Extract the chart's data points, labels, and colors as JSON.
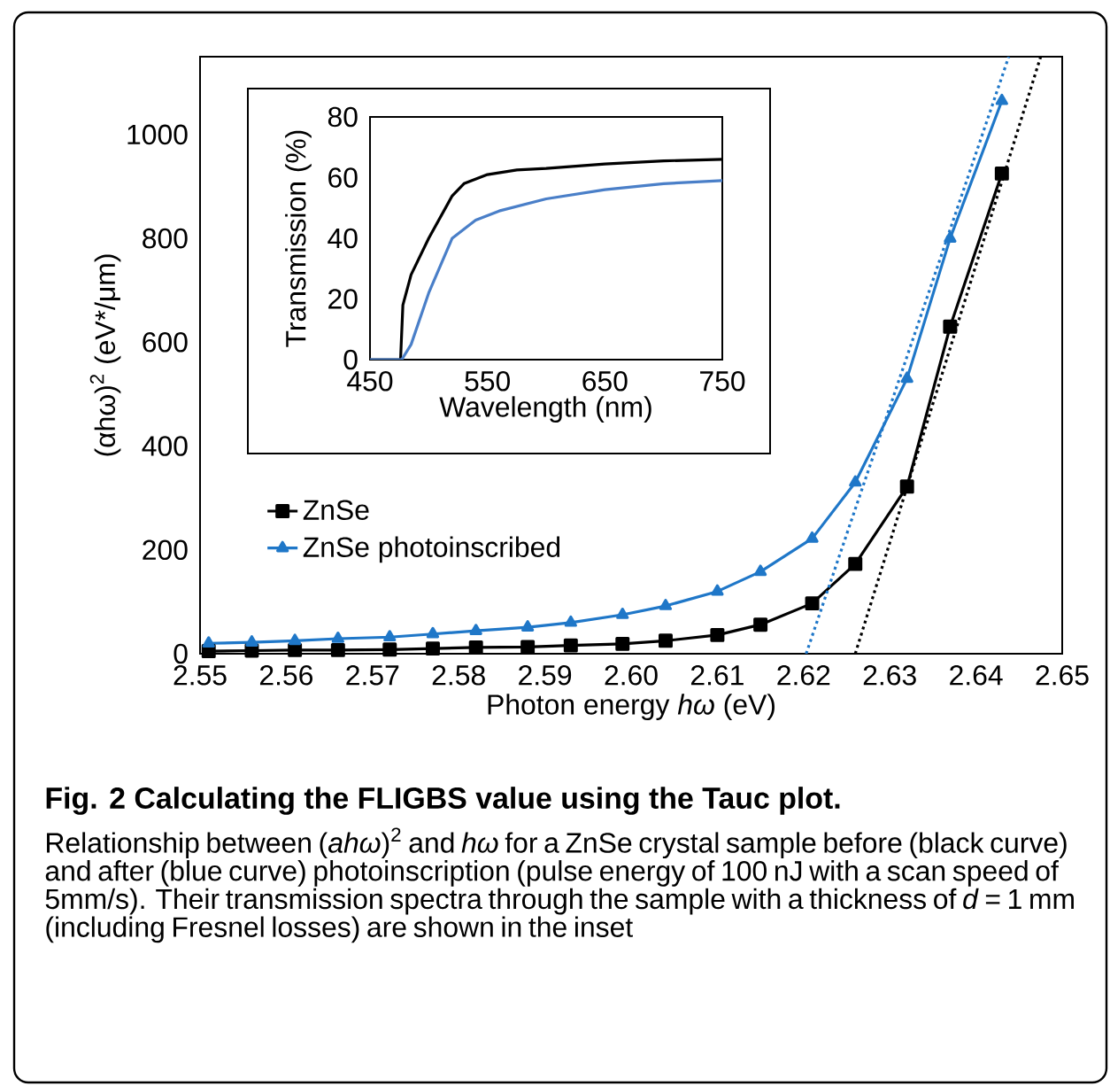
{
  "chart_data": [
    {
      "type": "line",
      "title": "Fig. 2 Calculating the FLIGBS value using the Tauc plot.",
      "xlabel": "Photon energy *hω* (eV)",
      "ylabel": "(αhω)$^{2}$ (eV*/μm)",
      "annotations": [
        "Relationship between (*ahω*)$^{2}$ and *hω* for a ZnSe crystal sample before (black curve) and after (blue curve) photoinscription (pulse energy of 100 nJ with a scan speed of 5mm/s). Their transmission spectra through the sample with a thickness of *d* = 1 mm (including Fresnel losses) are shown in the inset"
      ],
      "xlim": [
        2.55,
        2.65
      ],
      "ylim": [
        0,
        1150
      ],
      "xticks": [
        2.55,
        2.56,
        2.57,
        2.58,
        2.59,
        {
          "value": 2.6,
          "label": "2.60"
        },
        2.61,
        2.62,
        2.63,
        2.64,
        2.65
      ],
      "yticks": [
        0,
        200,
        400,
        600,
        800,
        1000
      ],
      "legend": "left",
      "series": [
        {
          "name": "ZnSe",
          "color": "#000000",
          "marker": "square",
          "line_style": "solid",
          "x": [
            2.551,
            2.556,
            2.561,
            2.566,
            2.572,
            2.577,
            2.582,
            2.588,
            2.593,
            2.599,
            2.604,
            2.61,
            2.615,
            2.621,
            2.626,
            2.632,
            2.637,
            2.643
          ],
          "values": [
            5,
            6,
            7,
            7,
            8,
            10,
            12,
            13,
            16,
            19,
            25,
            36,
            56,
            97,
            173,
            322,
            630,
            925
          ]
        },
        {
          "name": "ZnSe photoinscribed",
          "color": "#1f77c8",
          "marker": "triangle",
          "line_style": "solid",
          "x": [
            2.551,
            2.556,
            2.561,
            2.566,
            2.572,
            2.577,
            2.582,
            2.588,
            2.593,
            2.599,
            2.604,
            2.61,
            2.615,
            2.621,
            2.626,
            2.632,
            2.637,
            2.643
          ],
          "values": [
            20,
            22,
            25,
            29,
            32,
            38,
            44,
            51,
            60,
            75,
            92,
            120,
            158,
            222,
            330,
            530,
            800,
            1065
          ]
        },
        {
          "color": "#1f77c8",
          "marker": "none",
          "line_style": "dotted",
          "x": [
            2.6203,
            2.6438
          ],
          "values": [
            0,
            1150
          ]
        },
        {
          "color": "#000000",
          "marker": "none",
          "line_style": "dotted",
          "x": [
            2.626,
            2.6475
          ],
          "values": [
            0,
            1150
          ]
        }
      ]
    },
    {
      "type": "line",
      "xlabel": "Wavelength (nm)",
      "ylabel": "Transmission (%)",
      "xlim": [
        450,
        750
      ],
      "ylim": [
        0,
        80
      ],
      "xticks": [
        450,
        550,
        650,
        750
      ],
      "yticks": [
        0,
        20,
        40,
        60,
        80
      ],
      "series": [
        {
          "color": "#000000",
          "marker": "none",
          "line_style": "solid",
          "x": [
            450,
            476,
            478,
            485,
            500,
            520,
            530,
            550,
            575,
            600,
            650,
            700,
            750
          ],
          "values": [
            0,
            0,
            18,
            28,
            40,
            54,
            58,
            61,
            62.5,
            63,
            64.5,
            65.5,
            66
          ]
        },
        {
          "color": "#4a7fc8",
          "marker": "none",
          "line_style": "solid",
          "x": [
            450,
            477,
            485,
            500,
            520,
            540,
            560,
            600,
            650,
            700,
            750
          ],
          "values": [
            0,
            0,
            5,
            22,
            40,
            46,
            49,
            53,
            56,
            58,
            59
          ]
        }
      ]
    }
  ]
}
